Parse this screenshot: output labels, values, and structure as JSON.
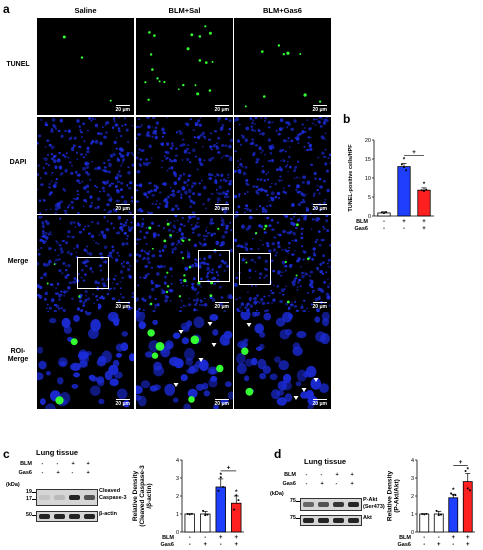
{
  "panel_a": {
    "label": "a",
    "columns": [
      "Saline",
      "BLM+Sal",
      "BLM+Gas6"
    ],
    "rows": [
      "TUNEL",
      "DAPI",
      "Merge",
      "ROI-\nMerge"
    ],
    "scale_bar": "20 μm",
    "colors": {
      "tunel": "#33ff33",
      "dapi": "#1b2bd6"
    }
  },
  "panel_b": {
    "label": "b",
    "chart_data": {
      "type": "bar",
      "ylabel": "TUNEL-positive cells/HPF",
      "ylim": [
        0,
        20
      ],
      "yticks": [
        "0",
        "5",
        "10",
        "15",
        "20"
      ],
      "conditions": [
        {
          "name": "BLM",
          "marks": [
            "-",
            "+",
            "+"
          ]
        },
        {
          "name": "Gas6",
          "marks": [
            "-",
            "-",
            "+"
          ]
        }
      ],
      "values": [
        0.8,
        13.0,
        6.8
      ],
      "errors": [
        0.3,
        0.8,
        0.6
      ],
      "colors": [
        "#ffffff",
        "#1f3fff",
        "#ff2020"
      ],
      "sig_marks": [
        "",
        "*",
        "*"
      ],
      "bracket_mark": "+"
    }
  },
  "panel_c": {
    "label": "c",
    "tissue": "Lung tissue",
    "treatments": [
      {
        "name": "BLM",
        "marks": [
          "-",
          "-",
          "+",
          "+"
        ]
      },
      {
        "name": "Gas6",
        "marks": [
          "-",
          "+",
          "-",
          "+"
        ]
      }
    ],
    "kda_label": "(kDa)",
    "mw": [
      "19",
      "17",
      "50"
    ],
    "bands": [
      "Cleaved\nCaspase-3",
      "β-actin"
    ],
    "chart_data": {
      "type": "bar",
      "ylabel": "Relative Density\n(Cleaved Caspase-3\n/β-actin)",
      "ylim": [
        0,
        4
      ],
      "yticks": [
        "0",
        "1",
        "2",
        "3",
        "4"
      ],
      "conditions": [
        {
          "name": "BLM",
          "marks": [
            "-",
            "-",
            "+",
            "+"
          ]
        },
        {
          "name": "Gas6",
          "marks": [
            "-",
            "+",
            "-",
            "+"
          ]
        }
      ],
      "values": [
        1.0,
        1.0,
        2.5,
        1.6
      ],
      "errors": [
        0.02,
        0.15,
        0.45,
        0.4
      ],
      "colors": [
        "#ffffff",
        "#ffffff",
        "#1f3fff",
        "#ff2020"
      ],
      "sig_marks": [
        "",
        "",
        "*",
        "*"
      ],
      "bracket_mark": "+"
    }
  },
  "panel_d": {
    "label": "d",
    "tissue": "Lung tissue",
    "treatments": [
      {
        "name": "BLM",
        "marks": [
          "-",
          "-",
          "+",
          "+"
        ]
      },
      {
        "name": "Gas6",
        "marks": [
          "-",
          "+",
          "-",
          "+"
        ]
      }
    ],
    "kda_label": "(kDa)",
    "mw": [
      "75",
      "75"
    ],
    "bands": [
      "P-Akt\n(Ser473)",
      "Akt"
    ],
    "chart_data": {
      "type": "bar",
      "ylabel": "Relative Density\n(P-Akt/Akt)",
      "ylim": [
        0,
        4
      ],
      "yticks": [
        "0",
        "1",
        "2",
        "3",
        "4"
      ],
      "conditions": [
        {
          "name": "BLM",
          "marks": [
            "-",
            "-",
            "+",
            "+"
          ]
        },
        {
          "name": "Gas6",
          "marks": [
            "-",
            "+",
            "-",
            "+"
          ]
        }
      ],
      "values": [
        1.0,
        1.0,
        1.9,
        2.8
      ],
      "errors": [
        0.02,
        0.15,
        0.2,
        0.45
      ],
      "colors": [
        "#ffffff",
        "#ffffff",
        "#1f3fff",
        "#ff2020"
      ],
      "sig_marks": [
        "",
        "",
        "*",
        "*"
      ],
      "bracket_mark": "+"
    }
  }
}
